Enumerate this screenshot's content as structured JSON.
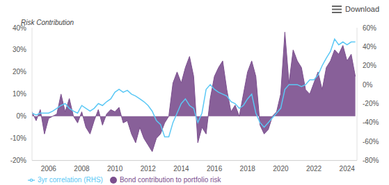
{
  "chart_data": {
    "type": "area",
    "ylabel": "Risk Contribution",
    "annotation": "Download",
    "legend": "bottom",
    "grid": false,
    "x": [
      2005.0,
      2005.25,
      2005.5,
      2005.75,
      2006.0,
      2006.25,
      2006.5,
      2006.75,
      2007.0,
      2007.25,
      2007.5,
      2007.75,
      2008.0,
      2008.25,
      2008.5,
      2008.75,
      2009.0,
      2009.25,
      2009.5,
      2009.75,
      2010.0,
      2010.25,
      2010.5,
      2010.75,
      2011.0,
      2011.25,
      2011.5,
      2011.75,
      2012.0,
      2012.25,
      2012.5,
      2012.75,
      2013.0,
      2013.25,
      2013.5,
      2013.75,
      2014.0,
      2014.25,
      2014.5,
      2014.75,
      2015.0,
      2015.25,
      2015.5,
      2015.75,
      2016.0,
      2016.25,
      2016.5,
      2016.75,
      2017.0,
      2017.25,
      2017.5,
      2017.75,
      2018.0,
      2018.25,
      2018.5,
      2018.75,
      2019.0,
      2019.25,
      2019.5,
      2019.75,
      2020.0,
      2020.25,
      2020.5,
      2020.75,
      2021.0,
      2021.25,
      2021.5,
      2021.75,
      2022.0,
      2022.25,
      2022.5,
      2022.75,
      2023.0,
      2023.25,
      2023.5,
      2023.75,
      2024.0,
      2024.25,
      2024.5
    ],
    "xlim": [
      2005,
      2024.6
    ],
    "xticks": [
      2006,
      2008,
      2010,
      2012,
      2014,
      2016,
      2018,
      2020,
      2022,
      2024
    ],
    "ylim": [
      -20,
      40
    ],
    "yticks": [
      {
        "value": -20,
        "label": "-20%"
      },
      {
        "value": -10,
        "label": "-10%"
      },
      {
        "value": 0,
        "label": "0%"
      },
      {
        "value": 10,
        "label": "10%"
      },
      {
        "value": 20,
        "label": "20%"
      },
      {
        "value": 30,
        "label": "30%"
      },
      {
        "value": 40,
        "label": "40%"
      }
    ],
    "y2lim": [
      -80,
      60
    ],
    "y2ticks": [
      {
        "value": -80,
        "label": "-80%"
      },
      {
        "value": -60,
        "label": "-60%"
      },
      {
        "value": -40,
        "label": "-40%"
      },
      {
        "value": -20,
        "label": "-20%"
      },
      {
        "value": 0,
        "label": "0%"
      },
      {
        "value": 20,
        "label": "20%"
      },
      {
        "value": 40,
        "label": "40%"
      },
      {
        "value": 60,
        "label": "60%"
      }
    ],
    "series": [
      {
        "name": "Bond contribution to portfolio risk",
        "type": "area",
        "color": "#7b4f8e",
        "marker": "circle",
        "values": [
          2,
          -2,
          3,
          -8,
          -1,
          0,
          1,
          10,
          2,
          8,
          0,
          -3,
          2,
          -5,
          -8,
          -2,
          3,
          -4,
          1,
          3,
          2,
          4,
          -3,
          -2,
          -8,
          -12,
          -5,
          -10,
          -13,
          -16,
          -10,
          -8,
          -3,
          0,
          15,
          20,
          15,
          22,
          27,
          18,
          -12,
          -5,
          -8,
          8,
          18,
          22,
          25,
          12,
          2,
          5,
          0,
          10,
          20,
          25,
          18,
          -4,
          -8,
          -6,
          0,
          2,
          10,
          38,
          15,
          30,
          25,
          22,
          12,
          10,
          15,
          20,
          12,
          22,
          25,
          30,
          28,
          32,
          25,
          28,
          18
        ]
      },
      {
        "name": "3yr correlation (RHS)",
        "type": "line",
        "axis": "y2",
        "color": "#5bc8f5",
        "marker": "line",
        "values": [
          -30,
          -32,
          -30,
          -30,
          -30,
          -28,
          -25,
          -22,
          -20,
          -25,
          -28,
          -30,
          -22,
          -25,
          -28,
          -25,
          -20,
          -22,
          -18,
          -15,
          -8,
          -5,
          -8,
          -6,
          -10,
          -12,
          -15,
          -18,
          -22,
          -28,
          -38,
          -42,
          -55,
          -55,
          -40,
          -30,
          -20,
          -15,
          -22,
          -25,
          -40,
          -30,
          -5,
          0,
          -5,
          -8,
          -10,
          -12,
          -18,
          -20,
          -25,
          -22,
          -15,
          -10,
          -30,
          -40,
          -45,
          -40,
          -35,
          -30,
          -25,
          -5,
          0,
          0,
          0,
          -2,
          0,
          5,
          5,
          10,
          20,
          28,
          35,
          48,
          42,
          45,
          42,
          45,
          45
        ]
      }
    ]
  }
}
